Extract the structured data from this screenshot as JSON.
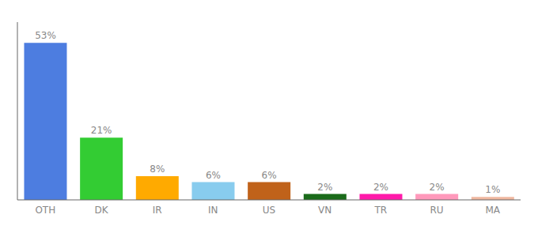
{
  "chart_data": {
    "type": "bar",
    "categories": [
      "OTH",
      "DK",
      "IR",
      "IN",
      "US",
      "VN",
      "TR",
      "RU",
      "MA"
    ],
    "values": [
      53,
      21,
      8,
      6,
      6,
      2,
      2,
      2,
      1
    ],
    "value_labels": [
      "53%",
      "21%",
      "8%",
      "6%",
      "6%",
      "2%",
      "2%",
      "2%",
      "1%"
    ],
    "colors": [
      "#4d7de0",
      "#33cc33",
      "#ffaa00",
      "#88ccee",
      "#c0621a",
      "#1a6b1a",
      "#ff1aaa",
      "#ff99bb",
      "#f0b8a0"
    ],
    "ylim": [
      0,
      60
    ],
    "grid": false,
    "data_labels": true,
    "tick_labels": "x"
  }
}
